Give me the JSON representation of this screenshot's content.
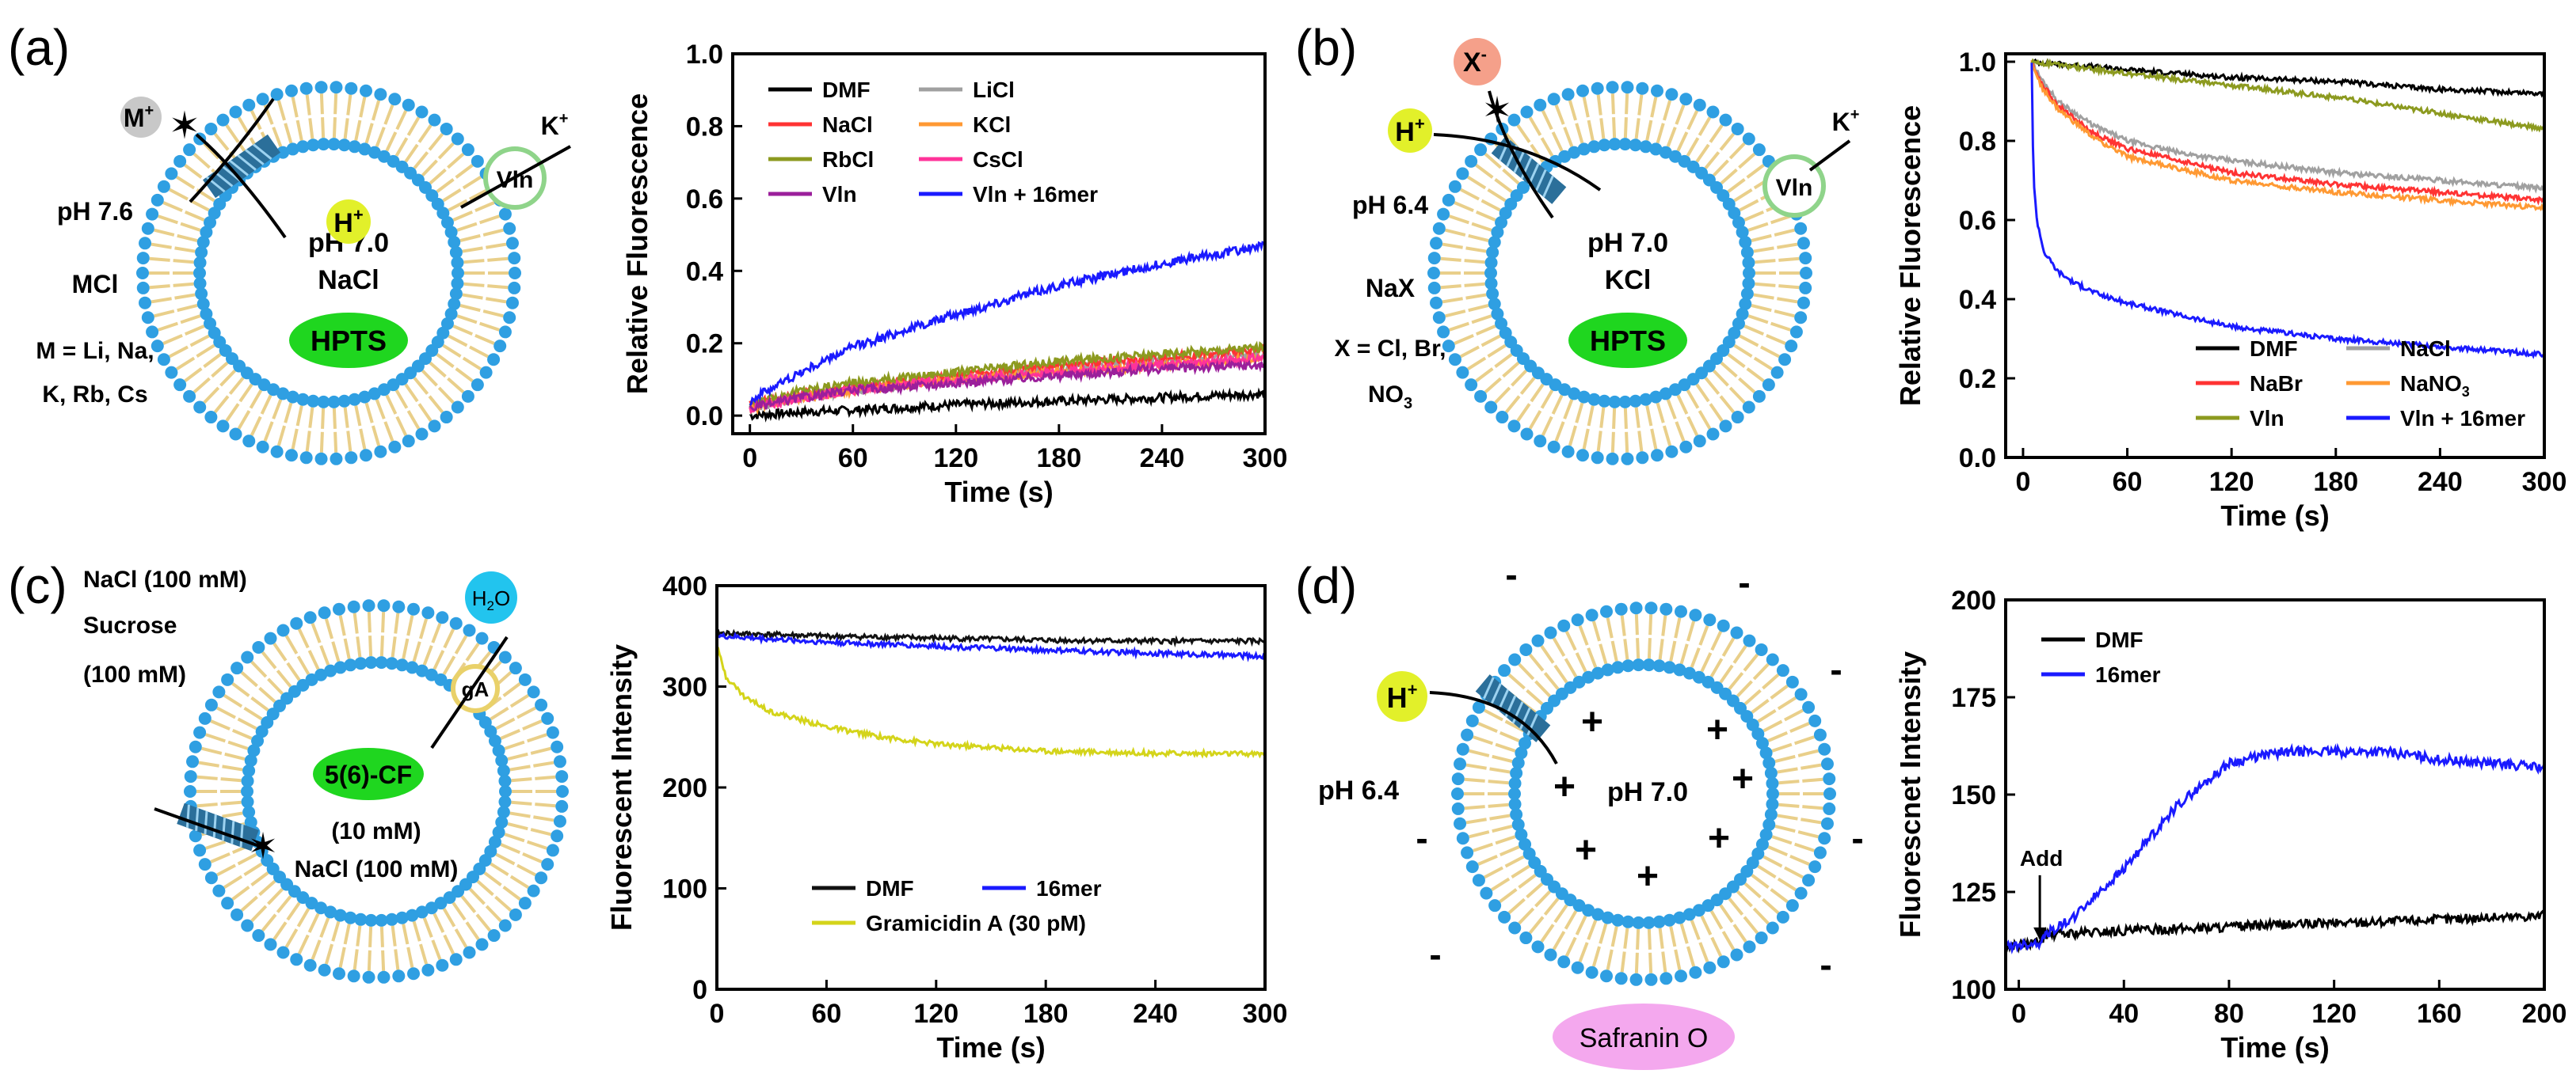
{
  "colors": {
    "membrane_head": "#2f9fe2",
    "membrane_tail": "#e9cf8a",
    "dye": "#1fd61f",
    "ion_yellow": "#e2f02a",
    "ion_gray": "#c8c8c8",
    "ion_salmon": "#f5a08a",
    "water": "#22c4ee",
    "safranin": "#f4a8ee",
    "channel": "#2b6f9a"
  },
  "panels": [
    {
      "id": "a",
      "label": "(a)",
      "schematic": {
        "outer_ion": "M",
        "outer_ion_sup": "+",
        "inner_ion": "H",
        "inner_ion_sup": "+",
        "carrier": "Vln",
        "carrier_ion": "K",
        "carrier_ion_sup": "+",
        "inside_ph": "pH 7.0",
        "inside_salt": "NaCl",
        "dye": "HPTS",
        "outside_lines": [
          "pH 7.6",
          "MCl",
          "M = Li, Na,",
          "K, Rb, Cs"
        ]
      }
    },
    {
      "id": "b",
      "label": "(b)",
      "schematic": {
        "anion": "X",
        "anion_sup": "-",
        "outer_ion": "H",
        "outer_ion_sup": "+",
        "carrier": "Vln",
        "carrier_ion": "K",
        "carrier_ion_sup": "+",
        "inside_ph": "pH 7.0",
        "inside_salt": "KCl",
        "dye": "HPTS",
        "outside_lines": [
          "pH 6.4",
          "NaX",
          "X = Cl, Br,"
        ],
        "outside_no3": "NO",
        "outside_no3_sub": "3"
      }
    },
    {
      "id": "c",
      "label": "(c)",
      "schematic": {
        "outside_lines": [
          "NaCl (100 mM)",
          "Sucrose",
          "(100 mM)"
        ],
        "water": "H",
        "water_sub": "2",
        "water_end": "O",
        "channel_label": "gA",
        "dye": "5(6)-CF",
        "inside_lines": [
          "(10 mM)",
          "NaCl (100 mM)"
        ]
      }
    },
    {
      "id": "d",
      "label": "(d)",
      "schematic": {
        "outer_ion": "H",
        "outer_ion_sup": "+",
        "outside_ph": "pH 6.4",
        "inside_ph": "pH 7.0",
        "plus": "+",
        "minus": "-",
        "dye": "Safranin O"
      }
    }
  ],
  "chart_data": [
    {
      "panel": "a",
      "type": "line",
      "xlabel": "Time (s)",
      "ylabel": "Relative Fluorescence",
      "xlim": [
        -10,
        300
      ],
      "ylim": [
        -0.05,
        1.0
      ],
      "xticks": [
        0,
        60,
        120,
        180,
        240,
        300
      ],
      "yticks": [
        0.0,
        0.2,
        0.4,
        0.6,
        0.8,
        1.0
      ],
      "ytick_labels": [
        "0.0",
        "0.2",
        "0.4",
        "0.6",
        "0.8",
        "1.0"
      ],
      "legend_position": "top",
      "legend_columns": 2,
      "noise": 0.012,
      "series": [
        {
          "name": "DMF",
          "color": "#000000",
          "x": [
            0,
            30,
            60,
            120,
            180,
            240,
            300
          ],
          "y": [
            0.0,
            0.01,
            0.015,
            0.03,
            0.04,
            0.05,
            0.06
          ]
        },
        {
          "name": "LiCl",
          "color": "#a0a0a0",
          "x": [
            0,
            30,
            60,
            120,
            180,
            240,
            300
          ],
          "y": [
            0.02,
            0.05,
            0.07,
            0.1,
            0.13,
            0.15,
            0.17
          ]
        },
        {
          "name": "NaCl",
          "color": "#ff3333",
          "x": [
            0,
            30,
            60,
            120,
            180,
            240,
            300
          ],
          "y": [
            0.03,
            0.06,
            0.08,
            0.11,
            0.14,
            0.16,
            0.18
          ]
        },
        {
          "name": "KCl",
          "color": "#ff9933",
          "x": [
            0,
            30,
            60,
            120,
            180,
            240,
            300
          ],
          "y": [
            0.02,
            0.05,
            0.07,
            0.1,
            0.12,
            0.14,
            0.16
          ]
        },
        {
          "name": "RbCl",
          "color": "#8c9a1f",
          "x": [
            0,
            30,
            60,
            120,
            180,
            240,
            300
          ],
          "y": [
            0.03,
            0.07,
            0.09,
            0.12,
            0.15,
            0.17,
            0.19
          ]
        },
        {
          "name": "CsCl",
          "color": "#ff3399",
          "x": [
            0,
            30,
            60,
            120,
            180,
            240,
            300
          ],
          "y": [
            0.02,
            0.05,
            0.07,
            0.1,
            0.12,
            0.14,
            0.16
          ]
        },
        {
          "name": "Vln",
          "color": "#9b1f9b",
          "x": [
            0,
            30,
            60,
            120,
            180,
            240,
            300
          ],
          "y": [
            0.02,
            0.05,
            0.07,
            0.09,
            0.11,
            0.13,
            0.14
          ]
        },
        {
          "name": "Vln + 16mer",
          "color": "#1a1aff",
          "x": [
            0,
            10,
            30,
            60,
            120,
            180,
            240,
            300
          ],
          "y": [
            0.04,
            0.07,
            0.12,
            0.19,
            0.28,
            0.36,
            0.42,
            0.47
          ]
        }
      ]
    },
    {
      "panel": "b",
      "type": "line",
      "xlabel": "Time (s)",
      "ylabel": "Relative Fluorescence",
      "xlim": [
        -10,
        300
      ],
      "ylim": [
        0.0,
        1.02
      ],
      "xticks": [
        0,
        60,
        120,
        180,
        240,
        300
      ],
      "yticks": [
        0.0,
        0.2,
        0.4,
        0.6,
        0.8,
        1.0
      ],
      "ytick_labels": [
        "0.0",
        "0.2",
        "0.4",
        "0.6",
        "0.8",
        "1.0"
      ],
      "legend_position": "bottom-right",
      "legend_columns": 2,
      "noise": 0.006,
      "series": [
        {
          "name": "DMF",
          "color": "#000000",
          "x": [
            5,
            60,
            120,
            180,
            240,
            300
          ],
          "y": [
            1.0,
            0.98,
            0.96,
            0.95,
            0.93,
            0.92
          ]
        },
        {
          "name": "NaCl",
          "color": "#a0a0a0",
          "x": [
            5,
            10,
            20,
            40,
            60,
            90,
            120,
            180,
            240,
            300
          ],
          "y": [
            1.0,
            0.96,
            0.9,
            0.84,
            0.8,
            0.77,
            0.75,
            0.72,
            0.7,
            0.68
          ]
        },
        {
          "name": "NaBr",
          "color": "#ff3333",
          "x": [
            5,
            10,
            20,
            40,
            60,
            90,
            120,
            180,
            240,
            300
          ],
          "y": [
            1.0,
            0.95,
            0.89,
            0.82,
            0.78,
            0.75,
            0.72,
            0.69,
            0.67,
            0.65
          ]
        },
        {
          "name": "NaNO3",
          "label_main": "NaNO",
          "label_sub": "3",
          "color": "#ff9933",
          "x": [
            5,
            10,
            20,
            40,
            60,
            90,
            120,
            180,
            240,
            300
          ],
          "y": [
            1.0,
            0.94,
            0.88,
            0.81,
            0.76,
            0.73,
            0.7,
            0.67,
            0.65,
            0.63
          ]
        },
        {
          "name": "Vln",
          "color": "#8c9a1f",
          "x": [
            5,
            60,
            120,
            180,
            240,
            300
          ],
          "y": [
            1.0,
            0.97,
            0.94,
            0.91,
            0.87,
            0.83
          ]
        },
        {
          "name": "Vln + 16mer",
          "color": "#1a1aff",
          "x": [
            5,
            6,
            8,
            12,
            20,
            30,
            45,
            60,
            90,
            120,
            180,
            240,
            300
          ],
          "y": [
            1.0,
            0.7,
            0.6,
            0.52,
            0.47,
            0.44,
            0.41,
            0.39,
            0.36,
            0.33,
            0.3,
            0.28,
            0.26
          ]
        }
      ]
    },
    {
      "panel": "c",
      "type": "line",
      "xlabel": "Time (s)",
      "ylabel": "Fluorescent Intensity",
      "xlim": [
        0,
        300
      ],
      "ylim": [
        0,
        400
      ],
      "xticks": [
        0,
        60,
        120,
        180,
        240,
        300
      ],
      "yticks": [
        0,
        100,
        200,
        300,
        400
      ],
      "ytick_labels": [
        "0",
        "100",
        "200",
        "300",
        "400"
      ],
      "legend_position": "bottom-center",
      "legend_columns": 2,
      "noise": 2.5,
      "series": [
        {
          "name": "DMF",
          "color": "#111111",
          "x": [
            0,
            60,
            120,
            180,
            240,
            300
          ],
          "y": [
            353,
            350,
            348,
            346,
            345,
            345
          ]
        },
        {
          "name": "16mer",
          "color": "#1a1aff",
          "x": [
            0,
            60,
            120,
            180,
            240,
            300
          ],
          "y": [
            350,
            344,
            340,
            336,
            333,
            330
          ]
        },
        {
          "name": "Gramicidin A (30 pM)",
          "color": "#d4d41a",
          "x": [
            0,
            5,
            15,
            30,
            60,
            90,
            120,
            180,
            240,
            300
          ],
          "y": [
            340,
            310,
            290,
            275,
            260,
            250,
            243,
            236,
            234,
            233
          ]
        }
      ]
    },
    {
      "panel": "d",
      "type": "line",
      "xlabel": "Time (s)",
      "ylabel": "Fluorescnet Intensity",
      "xlim": [
        -5,
        200
      ],
      "ylim": [
        100,
        200
      ],
      "xticks": [
        0,
        40,
        80,
        120,
        160,
        200
      ],
      "yticks": [
        100,
        125,
        150,
        175,
        200
      ],
      "ytick_labels": [
        "100",
        "125",
        "150",
        "175",
        "200"
      ],
      "legend_position": "top-left",
      "legend_columns": 1,
      "noise": 1.2,
      "annotation": {
        "text": "Add",
        "x": 8,
        "y": 111
      },
      "series": [
        {
          "name": "DMF",
          "color": "#000000",
          "x": [
            -5,
            8,
            10,
            40,
            80,
            120,
            160,
            200
          ],
          "y": [
            111,
            112,
            114,
            115,
            116,
            117,
            118,
            119
          ]
        },
        {
          "name": "16mer",
          "color": "#1a1aff",
          "x": [
            -5,
            8,
            10,
            20,
            40,
            60,
            80,
            100,
            120,
            140,
            160,
            180,
            200
          ],
          "y": [
            111,
            112,
            114,
            118,
            131,
            147,
            158,
            161,
            161,
            161,
            159,
            158,
            157
          ]
        }
      ]
    }
  ]
}
